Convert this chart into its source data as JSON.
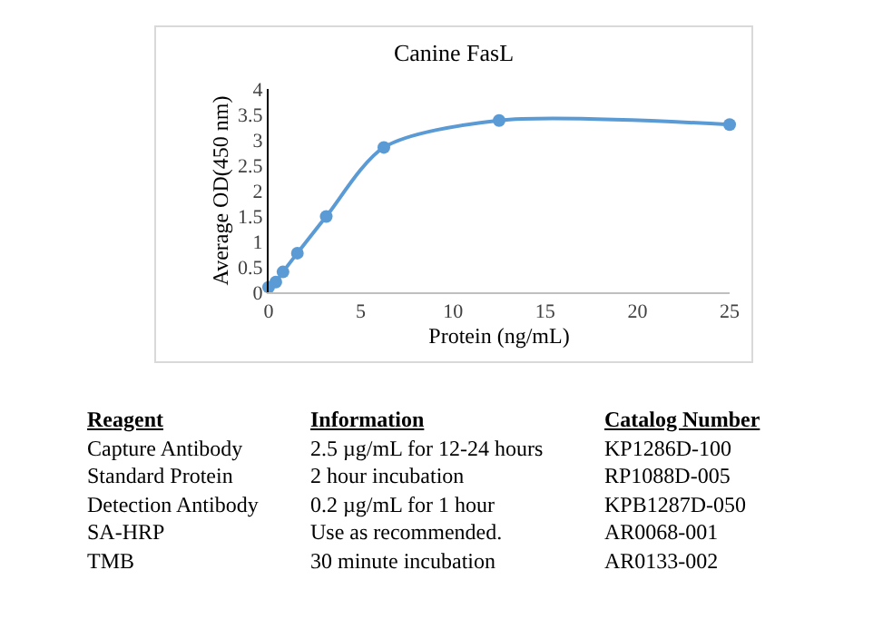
{
  "chart_data": {
    "type": "line",
    "title": "Canine FasL",
    "xlabel": "Protein (ng/mL)",
    "ylabel": "Average OD(450 nm)",
    "x": [
      0,
      0.39,
      0.78,
      1.56,
      3.125,
      6.25,
      12.5,
      25
    ],
    "series": [
      {
        "color": "#5b9bd5",
        "values": [
          0.1,
          0.2,
          0.4,
          0.77,
          1.49,
          2.85,
          3.38,
          3.3
        ]
      }
    ],
    "xlim": [
      0,
      25
    ],
    "xticks": [
      0,
      5,
      10,
      15,
      20,
      25
    ],
    "ylim": [
      0,
      4
    ],
    "yticks": [
      0,
      0.5,
      1,
      1.5,
      2,
      2.5,
      3,
      3.5,
      4
    ],
    "grid": false,
    "marker": "circle",
    "line_style": "solid",
    "annotations": [
      "Reagent",
      "Information",
      "Catalog Number",
      "Capture Antibody",
      "2.5 µg/mL for 12-24 hours",
      "KP1286D-100",
      "Standard Protein",
      "2 hour incubation",
      "RP1088D-005",
      "Detection Antibody",
      "0.2 µg/mL for 1 hour",
      "KPB1287D-050",
      "SA-HRP",
      "Use as recommended.",
      "AR0068-001",
      "TMB",
      "30 minute incubation",
      "AR0133-002"
    ]
  }
}
